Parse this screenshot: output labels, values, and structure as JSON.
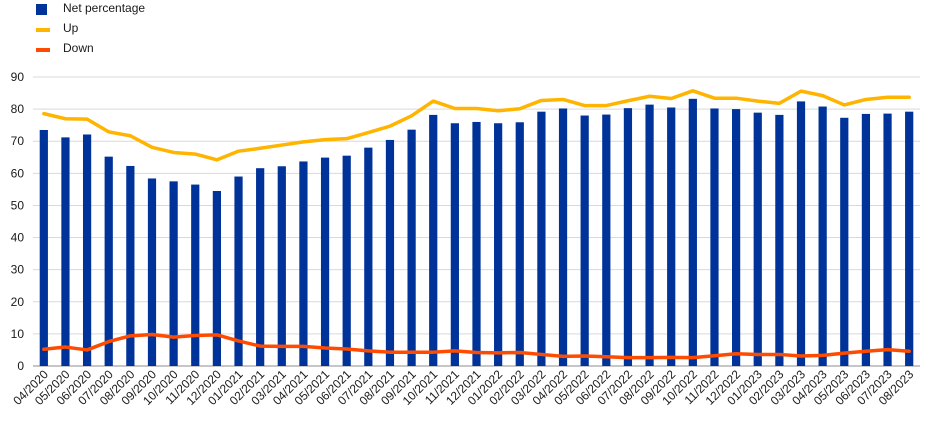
{
  "chart_data": {
    "type": "bar",
    "categories": [
      "04/2020",
      "05/2020",
      "06/2020",
      "07/2020",
      "08/2020",
      "09/2020",
      "10/2020",
      "11/2020",
      "12/2020",
      "01/2021",
      "02/2021",
      "03/2021",
      "04/2021",
      "05/2021",
      "06/2021",
      "07/2021",
      "08/2021",
      "09/2021",
      "10/2021",
      "11/2021",
      "12/2021",
      "01/2022",
      "02/2022",
      "03/2022",
      "04/2022",
      "05/2022",
      "06/2022",
      "07/2022",
      "08/2022",
      "09/2022",
      "10/2022",
      "11/2022",
      "12/2022",
      "01/2023",
      "02/2023",
      "03/2023",
      "04/2023",
      "05/2023",
      "06/2023",
      "07/2023",
      "08/2023"
    ],
    "series": [
      {
        "name": "Net percentage",
        "type": "bar",
        "color": "#003399",
        "values": [
          73.5,
          71.2,
          72.1,
          65.2,
          62.3,
          58.4,
          57.5,
          56.5,
          54.5,
          59.0,
          61.6,
          62.2,
          63.7,
          64.9,
          65.5,
          68.0,
          70.4,
          73.6,
          78.2,
          75.6,
          76.0,
          75.6,
          75.9,
          79.2,
          80.2,
          78.0,
          78.3,
          80.3,
          81.4,
          80.5,
          83.2,
          80.2,
          80.0,
          78.9,
          78.2,
          82.4,
          80.8,
          77.3,
          78.5,
          78.6,
          79.2
        ]
      },
      {
        "name": "Up",
        "type": "line",
        "color": "#FFB400",
        "values": [
          78.6,
          77.0,
          76.9,
          72.9,
          71.7,
          68.1,
          66.5,
          66.0,
          64.2,
          66.9,
          67.8,
          68.8,
          69.8,
          70.5,
          70.8,
          72.7,
          74.7,
          77.9,
          82.5,
          80.2,
          80.2,
          79.5,
          80.1,
          82.7,
          83.0,
          81.1,
          81.1,
          82.6,
          84.0,
          83.3,
          85.7,
          83.4,
          83.4,
          82.5,
          81.8,
          85.6,
          84.2,
          81.3,
          83.0,
          83.7,
          83.7
        ]
      },
      {
        "name": "Down",
        "type": "line",
        "color": "#FF4B00",
        "values": [
          5.2,
          5.9,
          5.0,
          7.6,
          9.4,
          9.8,
          9.0,
          9.5,
          9.7,
          7.8,
          6.2,
          6.1,
          6.1,
          5.6,
          5.3,
          4.7,
          4.3,
          4.3,
          4.3,
          4.7,
          4.2,
          4.1,
          4.2,
          3.6,
          3.0,
          3.1,
          2.9,
          2.6,
          2.6,
          2.7,
          2.6,
          3.2,
          3.8,
          3.6,
          3.6,
          3.1,
          3.3,
          4.0,
          4.6,
          5.1,
          4.6
        ]
      }
    ],
    "ylim": [
      0,
      90
    ],
    "yticks": [
      0,
      10,
      20,
      30,
      40,
      50,
      60,
      70,
      80,
      90
    ],
    "xlabel": "",
    "ylabel": "",
    "grid": true,
    "legend_position": "top-left"
  }
}
